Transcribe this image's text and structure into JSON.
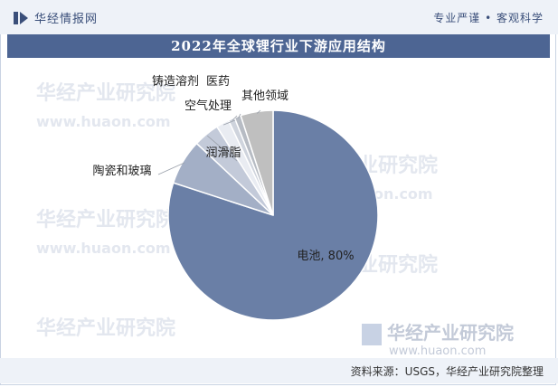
{
  "header": {
    "brand_name": "华经情报网",
    "slogan": "专业严谨 • 客观科学"
  },
  "watermark": {
    "text_cn": "华经产业研究院",
    "url": "www.huaon.com"
  },
  "footer": {
    "source": "资料来源：USGS，华经产业研究院整理"
  },
  "colors": {
    "title_bg": "#4d6593",
    "header_bg": "#eef2f8",
    "battery": "#6a7fa6",
    "ceramics": "#a3afc6",
    "lubricant": "#c3cad9",
    "air": "#e9ecf2",
    "casting": "#cfd4dd",
    "medicine": "#b7bcc4",
    "other": "#bfbfbf"
  },
  "chart_data": {
    "type": "pie",
    "title": "2022年全球锂行业下游应用结构",
    "slices": [
      {
        "label": "电池, 80%",
        "value": 80,
        "color": "#6a7fa6"
      },
      {
        "label": "陶瓷和玻璃",
        "value": 7,
        "color": "#a3afc6"
      },
      {
        "label": "润滑脂",
        "value": 4,
        "color": "#c3cad9"
      },
      {
        "label": "空气处理",
        "value": 2,
        "color": "#e9ecf2"
      },
      {
        "label": "铸造溶剂",
        "value": 1,
        "color": "#cfd4dd"
      },
      {
        "label": "医药",
        "value": 1,
        "color": "#b7bcc4"
      },
      {
        "label": "其他领域",
        "value": 5,
        "color": "#bfbfbf"
      }
    ]
  }
}
